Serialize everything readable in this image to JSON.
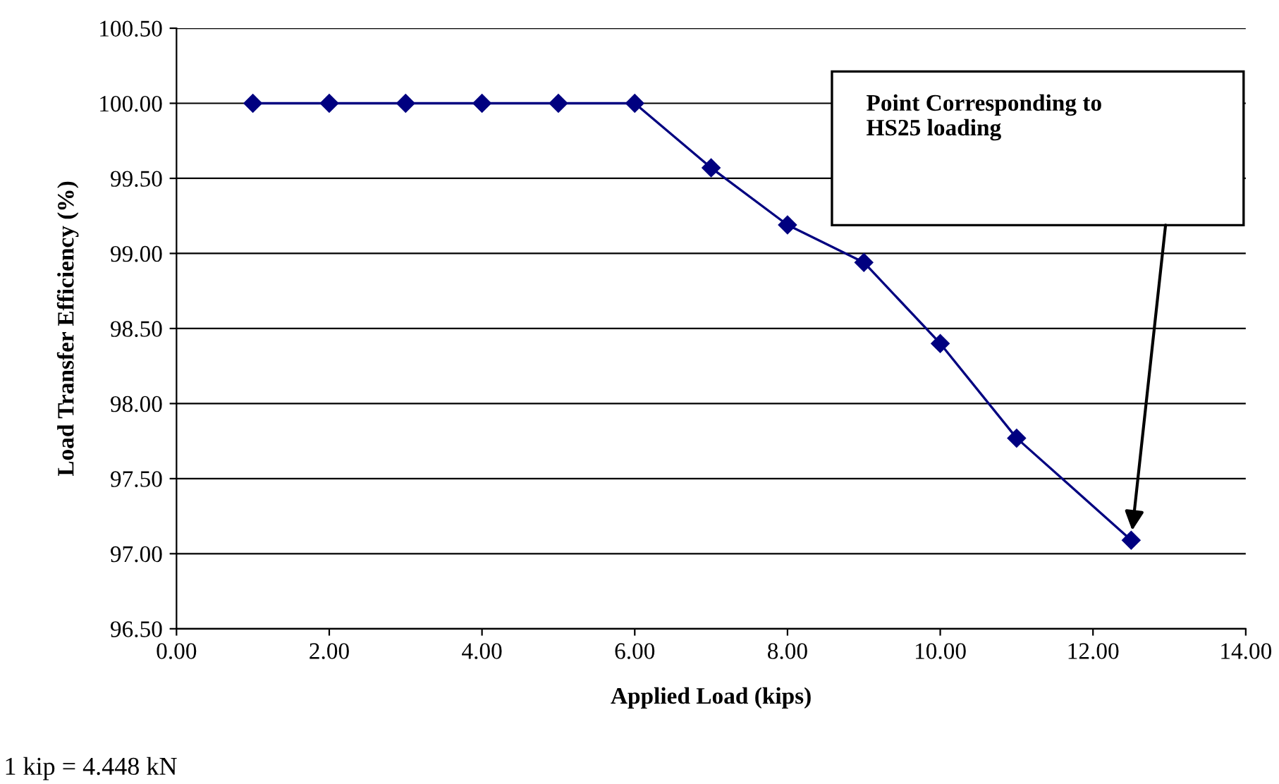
{
  "chart_data": {
    "type": "line",
    "xlabel": "Applied Load (kips)",
    "ylabel": "Load Transfer Efficiency (%)",
    "x": [
      1,
      2,
      3,
      4,
      5,
      6,
      7,
      8,
      9,
      10,
      11,
      12.5
    ],
    "series": [
      {
        "color": "#000080",
        "values": [
          100.0,
          100.0,
          100.0,
          100.0,
          100.0,
          100.0,
          99.57,
          99.19,
          98.94,
          98.4,
          97.77,
          97.09
        ]
      }
    ],
    "xlim": [
      0,
      14
    ],
    "ylim": [
      96.5,
      100.5
    ],
    "xticks": [
      {
        "value": 0,
        "label": "0.00"
      },
      {
        "value": 2,
        "label": "2.00"
      },
      {
        "value": 4,
        "label": "4.00"
      },
      {
        "value": 6,
        "label": "6.00"
      },
      {
        "value": 8,
        "label": "8.00"
      },
      {
        "value": 10,
        "label": "10.00"
      },
      {
        "value": 12,
        "label": "12.00"
      },
      {
        "value": 14,
        "label": "14.00"
      }
    ],
    "yticks": [
      {
        "value": 96.5,
        "label": "96.50"
      },
      {
        "value": 97,
        "label": "97.00"
      },
      {
        "value": 97.5,
        "label": "97.50"
      },
      {
        "value": 98,
        "label": "98.00"
      },
      {
        "value": 98.5,
        "label": "98.50"
      },
      {
        "value": 99,
        "label": "99.00"
      },
      {
        "value": 99.5,
        "label": "99.50"
      },
      {
        "value": 100,
        "label": "100.00"
      },
      {
        "value": 100.5,
        "label": "100.50"
      }
    ],
    "grid": "y",
    "marker": "diamond",
    "line_style": "solid",
    "legend": false,
    "annotations": [
      "Point Corresponding to\nHS25 loading",
      "1 kip = 4.448 kN"
    ]
  }
}
